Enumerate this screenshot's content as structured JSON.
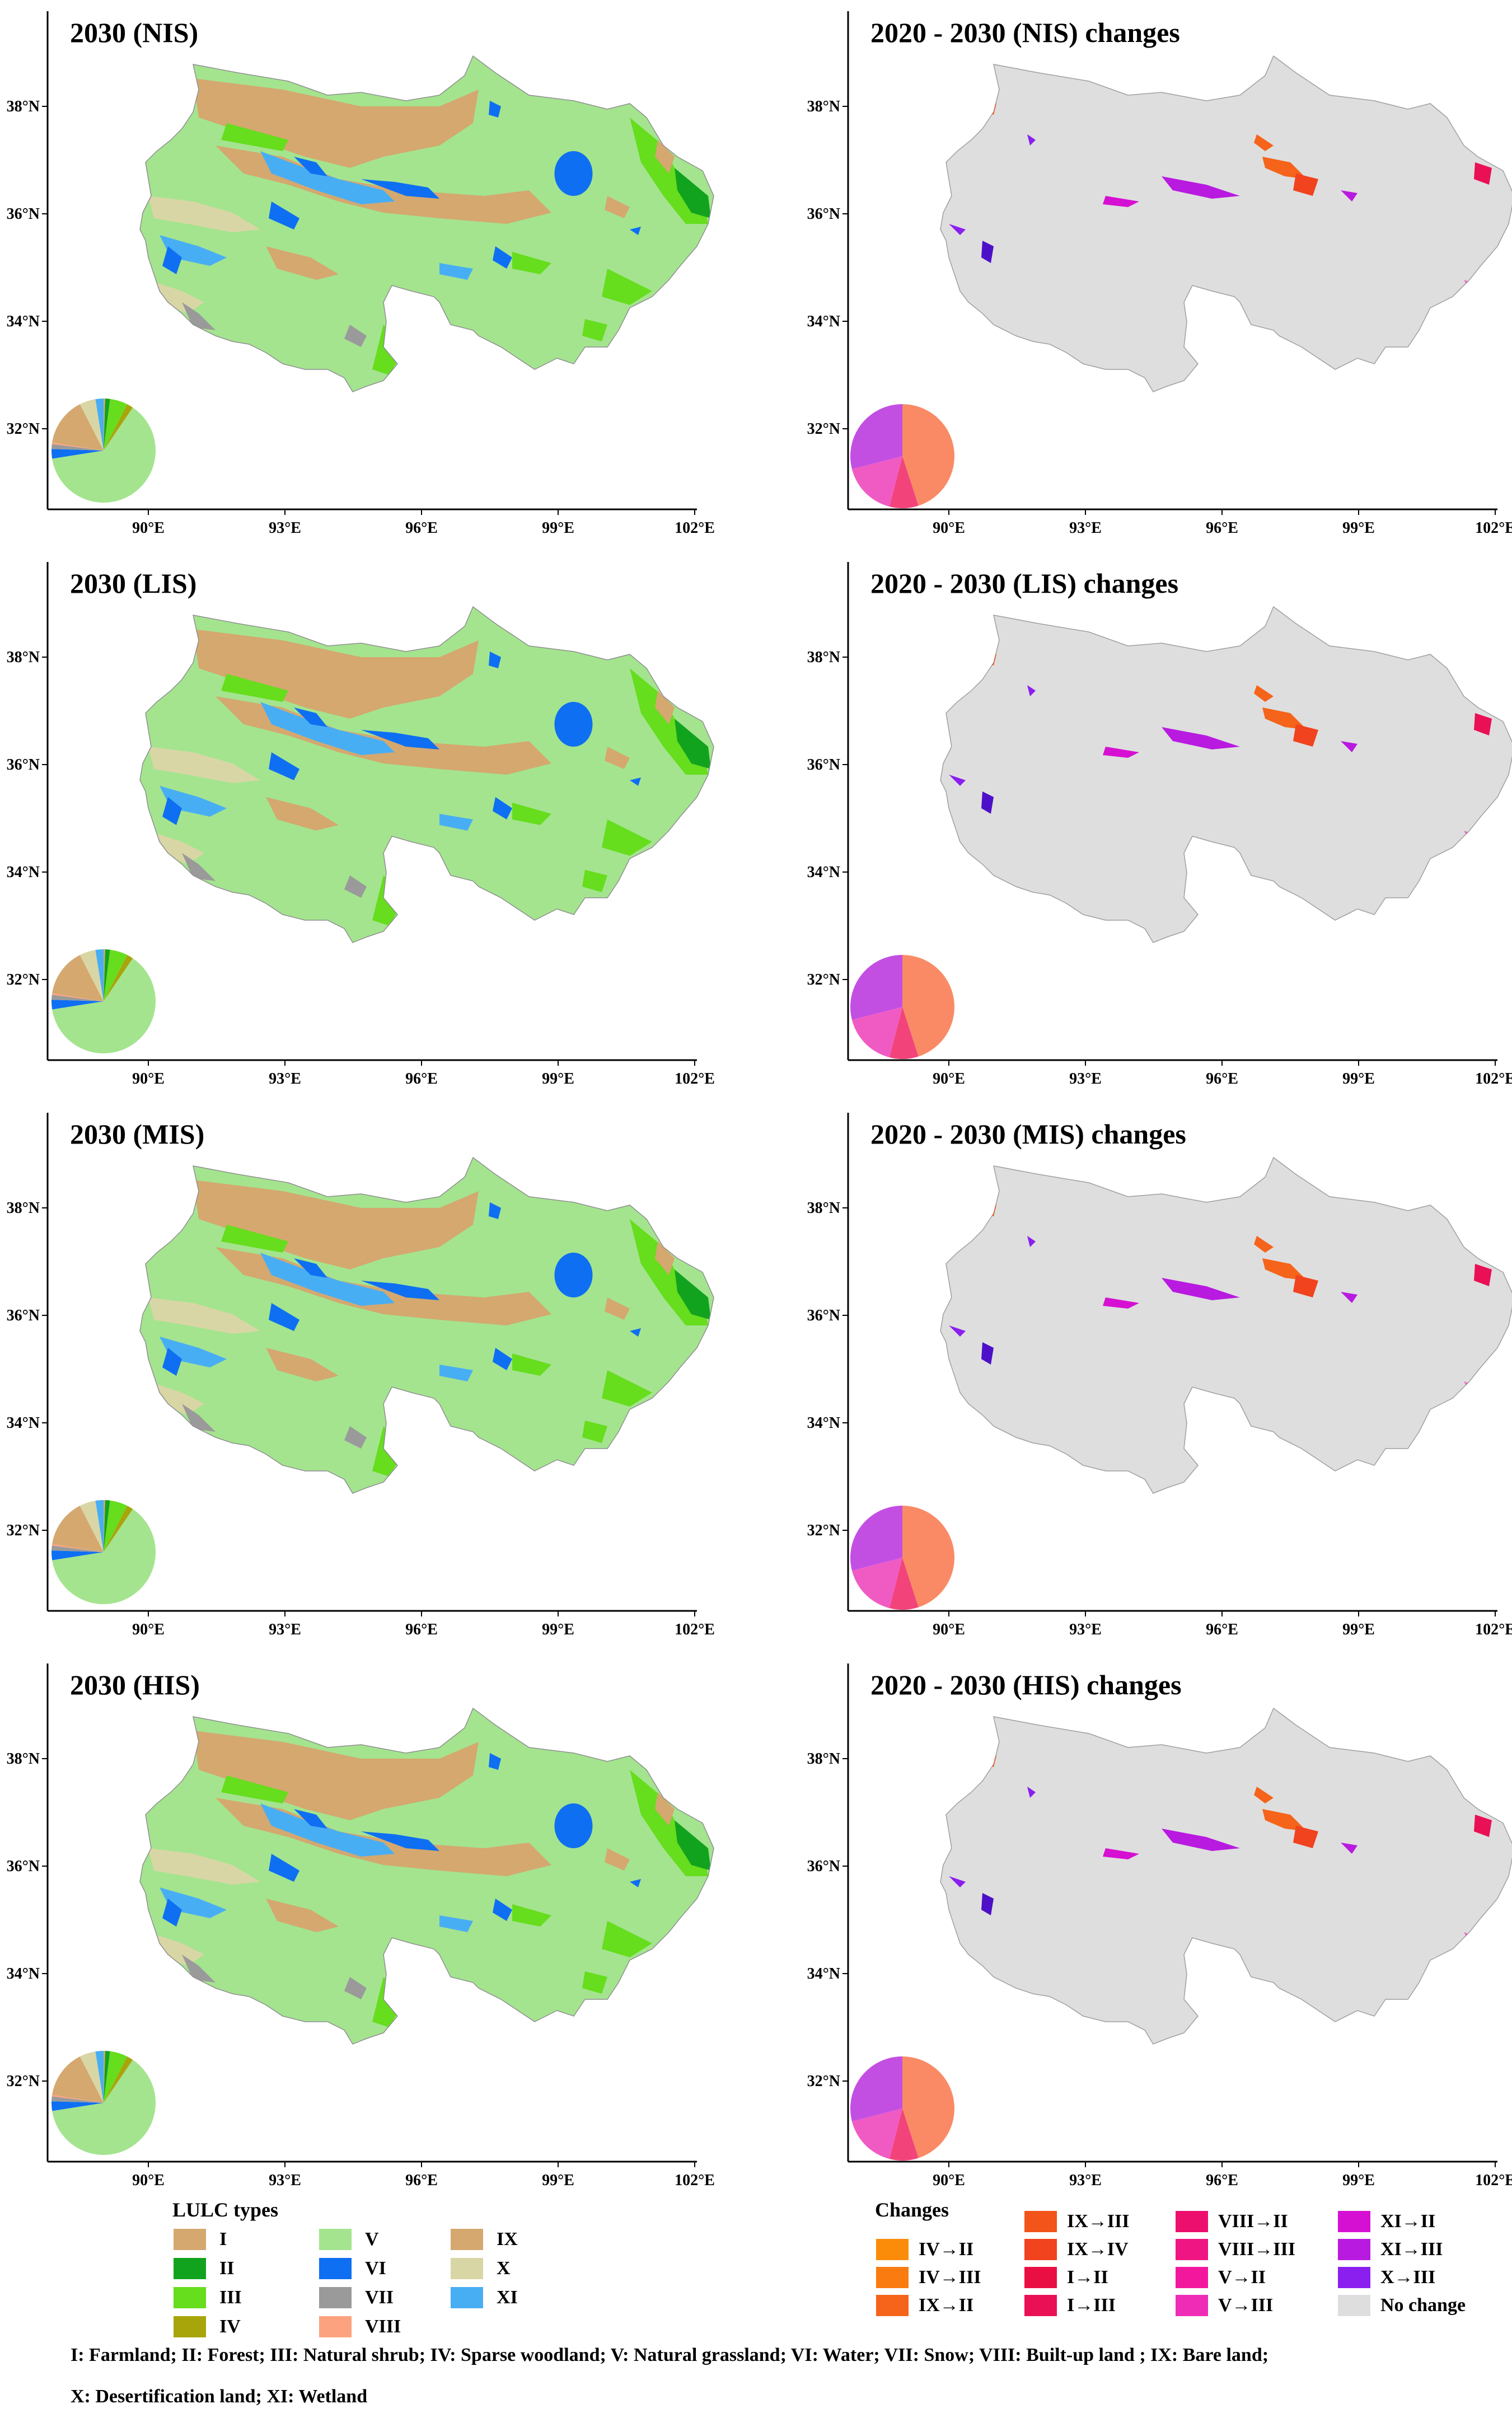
{
  "figure": {
    "lon_ticks": [
      "90°E",
      "93°E",
      "96°E",
      "99°E",
      "102°E"
    ],
    "lat_ticks": [
      "38°N",
      "36°N",
      "34°N",
      "32°N"
    ],
    "lulc_panels": [
      {
        "title": "2030 (NIS)",
        "pie": [
          0.005,
          0.015,
          0.055,
          0.02,
          0.63,
          0.03,
          0.015,
          0.005,
          0.15,
          0.05,
          0.025
        ]
      },
      {
        "title": "2030 (LIS)",
        "pie": [
          0.005,
          0.015,
          0.055,
          0.02,
          0.63,
          0.03,
          0.015,
          0.005,
          0.15,
          0.05,
          0.025
        ]
      },
      {
        "title": "2030 (MIS)",
        "pie": [
          0.005,
          0.015,
          0.055,
          0.02,
          0.63,
          0.03,
          0.015,
          0.005,
          0.15,
          0.05,
          0.025
        ]
      },
      {
        "title": "2030 (HIS)",
        "pie": [
          0.005,
          0.015,
          0.055,
          0.02,
          0.63,
          0.03,
          0.015,
          0.005,
          0.15,
          0.05,
          0.025
        ]
      }
    ],
    "change_panels": [
      {
        "title": "2020 - 2030 (NIS) changes",
        "pie": [
          0.45,
          0.09,
          0.17,
          0.29
        ]
      },
      {
        "title": "2020 - 2030 (LIS) changes",
        "pie": [
          0.45,
          0.09,
          0.17,
          0.29
        ]
      },
      {
        "title": "2020 - 2030 (MIS) changes",
        "pie": [
          0.45,
          0.09,
          0.17,
          0.29
        ]
      },
      {
        "title": "2020 - 2030 (HIS) changes",
        "pie": [
          0.45,
          0.09,
          0.17,
          0.29
        ]
      }
    ],
    "change_pie_colors": [
      "#fa8a66",
      "#f2447a",
      "#f05bc3",
      "#c34fe2"
    ]
  },
  "legend_lulc": {
    "title": "LULC types",
    "items": [
      {
        "label": "I",
        "color": "#d4a86f"
      },
      {
        "label": "II",
        "color": "#12a31e"
      },
      {
        "label": "III",
        "color": "#66dd1d"
      },
      {
        "label": "IV",
        "color": "#a8a50b"
      },
      {
        "label": "V",
        "color": "#a4e48f"
      },
      {
        "label": "VI",
        "color": "#0e6ff2"
      },
      {
        "label": "VII",
        "color": "#9a9a9a"
      },
      {
        "label": "VIII",
        "color": "#fca27f"
      },
      {
        "label": "IX",
        "color": "#d4a86f"
      },
      {
        "label": "X",
        "color": "#d9d6a5"
      },
      {
        "label": "XI",
        "color": "#48aef4"
      }
    ]
  },
  "legend_changes": {
    "title": "Changes",
    "items": [
      {
        "label": "IV→II",
        "color": "#fb8c0a"
      },
      {
        "label": "IV→III",
        "color": "#fa7b10"
      },
      {
        "label": "IX→II",
        "color": "#f5641a"
      },
      {
        "label": "IX→III",
        "color": "#f25419"
      },
      {
        "label": "IX→IV",
        "color": "#f0431e"
      },
      {
        "label": "I→II",
        "color": "#ea0f43"
      },
      {
        "label": "I→III",
        "color": "#ea1055"
      },
      {
        "label": "VIII→II",
        "color": "#ec0f6e"
      },
      {
        "label": "VIII→III",
        "color": "#ef1582"
      },
      {
        "label": "V→II",
        "color": "#f3179e"
      },
      {
        "label": "V→III",
        "color": "#ef2cb5"
      },
      {
        "label": "XI→II",
        "color": "#d610d3"
      },
      {
        "label": "XI→III",
        "color": "#b81ae0"
      },
      {
        "label": "X→III",
        "color": "#8a1ff0"
      },
      {
        "label": "No change",
        "color": "#dedede"
      }
    ]
  },
  "footnote": {
    "line1": "I: Farmland; II: Forest; III: Natural shrub; IV: Sparse woodland; V: Natural grassland; VI: Water; VII: Snow; VIII: Built-up land ; IX: Bare land;",
    "line2": "X: Desertification land; XI: Wetland"
  }
}
